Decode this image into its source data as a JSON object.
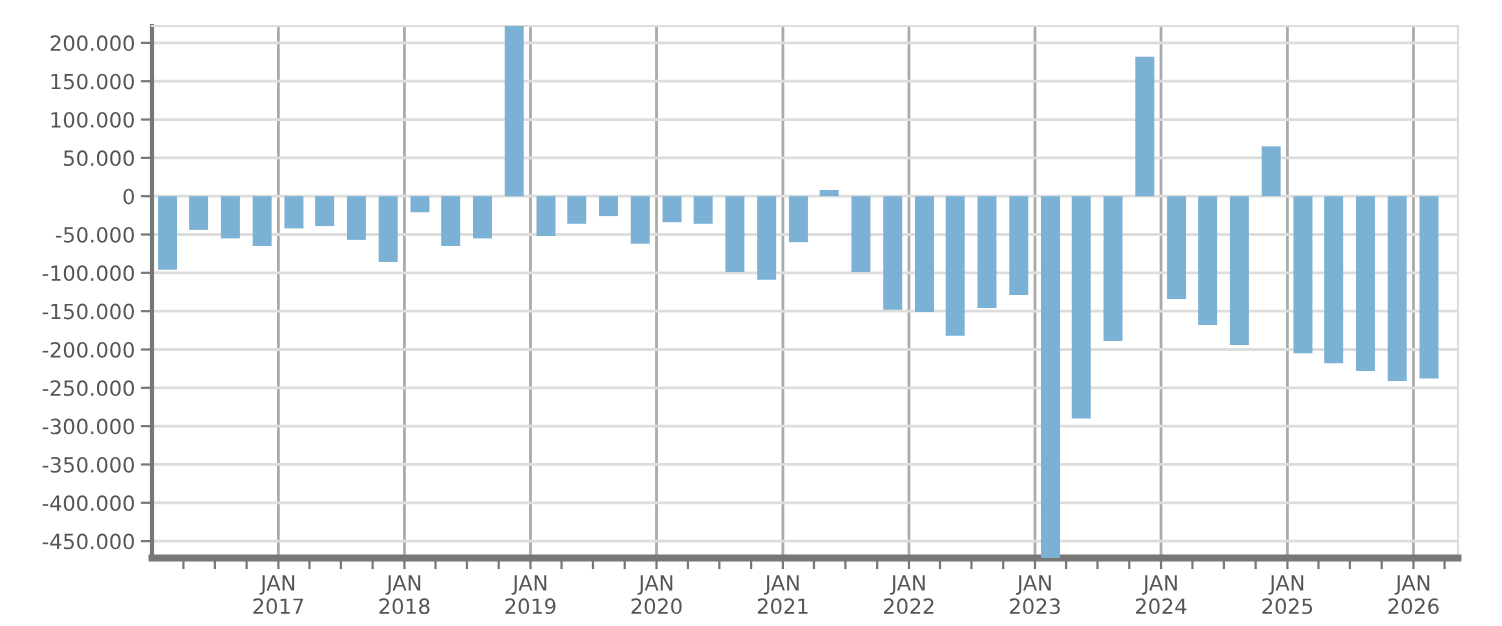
{
  "chart_data": {
    "type": "bar",
    "color": "#7ab1d4",
    "grid": true,
    "legend": false,
    "x": [
      "2016-02-15",
      "2016-05-15",
      "2016-08-15",
      "2016-11-15",
      "2017-02-15",
      "2017-05-15",
      "2017-08-15",
      "2017-11-15",
      "2018-02-15",
      "2018-05-15",
      "2018-08-15",
      "2018-11-15",
      "2019-02-15",
      "2019-05-15",
      "2019-08-15",
      "2019-11-15",
      "2020-02-15",
      "2020-05-15",
      "2020-08-15",
      "2020-11-15",
      "2021-02-15",
      "2021-05-15",
      "2021-08-15",
      "2021-11-15",
      "2022-02-15",
      "2022-05-15",
      "2022-08-15",
      "2022-11-15",
      "2023-02-15",
      "2023-05-15",
      "2023-08-15",
      "2023-11-15",
      "2024-02-15",
      "2024-05-15",
      "2024-08-15",
      "2024-11-15",
      "2025-02-15",
      "2025-05-15",
      "2025-08-15",
      "2025-11-15",
      "2026-02-15"
    ],
    "values": [
      -96000,
      -44000,
      -55000,
      -65000,
      -42000,
      -39000,
      -57000,
      -86000,
      -21000,
      -65000,
      -55000,
      222000,
      -52000,
      -36000,
      -26000,
      -62000,
      -34000,
      -36000,
      -99000,
      -109000,
      -60000,
      8000,
      -99000,
      -148000,
      -151000,
      -182000,
      -146000,
      -129000,
      -472000,
      -290000,
      -189000,
      182000,
      -134000,
      -168000,
      -194000,
      65000,
      -205000,
      -218000,
      -228000,
      -241000,
      -238000
    ],
    "ylim": [
      -472000,
      222000
    ],
    "yticks": [
      {
        "value": -450000,
        "label": "-450.000"
      },
      {
        "value": -400000,
        "label": "-400.000"
      },
      {
        "value": -350000,
        "label": "-350.000"
      },
      {
        "value": -300000,
        "label": "-300.000"
      },
      {
        "value": -250000,
        "label": "-250.000"
      },
      {
        "value": -200000,
        "label": "-200.000"
      },
      {
        "value": -150000,
        "label": "-150.000"
      },
      {
        "value": -100000,
        "label": "-100.000"
      },
      {
        "value": -50000,
        "label": "-50.000"
      },
      0,
      {
        "value": 50000,
        "label": "50.000"
      },
      {
        "value": 100000,
        "label": "100.000"
      },
      {
        "value": 150000,
        "label": "150.000"
      },
      {
        "value": 200000,
        "label": "200.000"
      }
    ],
    "xlim": [
      "2016-01-01",
      "2026-05-10"
    ],
    "xticks": [
      {
        "value": "2016-04-01",
        "label": null
      },
      {
        "value": "2016-07-01",
        "label": null
      },
      {
        "value": "2016-10-01",
        "label": null
      },
      {
        "value": "2017-01-01",
        "label": "JAN\n2017"
      },
      {
        "value": "2017-04-01",
        "label": null
      },
      {
        "value": "2017-07-01",
        "label": null
      },
      {
        "value": "2017-10-01",
        "label": null
      },
      {
        "value": "2018-01-01",
        "label": "JAN\n2018"
      },
      {
        "value": "2018-04-01",
        "label": null
      },
      {
        "value": "2018-07-01",
        "label": null
      },
      {
        "value": "2018-10-01",
        "label": null
      },
      {
        "value": "2019-01-01",
        "label": "JAN\n2019"
      },
      {
        "value": "2019-04-01",
        "label": null
      },
      {
        "value": "2019-07-01",
        "label": null
      },
      {
        "value": "2019-10-01",
        "label": null
      },
      {
        "value": "2020-01-01",
        "label": "JAN\n2020"
      },
      {
        "value": "2020-04-01",
        "label": null
      },
      {
        "value": "2020-07-01",
        "label": null
      },
      {
        "value": "2020-10-01",
        "label": null
      },
      {
        "value": "2021-01-01",
        "label": "JAN\n2021"
      },
      {
        "value": "2021-04-01",
        "label": null
      },
      {
        "value": "2021-07-01",
        "label": null
      },
      {
        "value": "2021-10-01",
        "label": null
      },
      {
        "value": "2022-01-01",
        "label": "JAN\n2022"
      },
      {
        "value": "2022-04-01",
        "label": null
      },
      {
        "value": "2022-07-01",
        "label": null
      },
      {
        "value": "2022-10-01",
        "label": null
      },
      {
        "value": "2023-01-01",
        "label": "JAN\n2023"
      },
      {
        "value": "2023-04-01",
        "label": null
      },
      {
        "value": "2023-07-01",
        "label": null
      },
      {
        "value": "2023-10-01",
        "label": null
      },
      {
        "value": "2024-01-01",
        "label": "JAN\n2024"
      },
      {
        "value": "2024-04-01",
        "label": null
      },
      {
        "value": "2024-07-01",
        "label": null
      },
      {
        "value": "2024-10-01",
        "label": null
      },
      {
        "value": "2025-01-01",
        "label": "JAN\n2025"
      },
      {
        "value": "2025-04-01",
        "label": null
      },
      {
        "value": "2025-07-01",
        "label": null
      },
      {
        "value": "2025-10-01",
        "label": null
      },
      {
        "value": "2026-01-01",
        "label": "JAN\n2026"
      },
      {
        "value": "2026-04-01",
        "label": null
      }
    ]
  }
}
